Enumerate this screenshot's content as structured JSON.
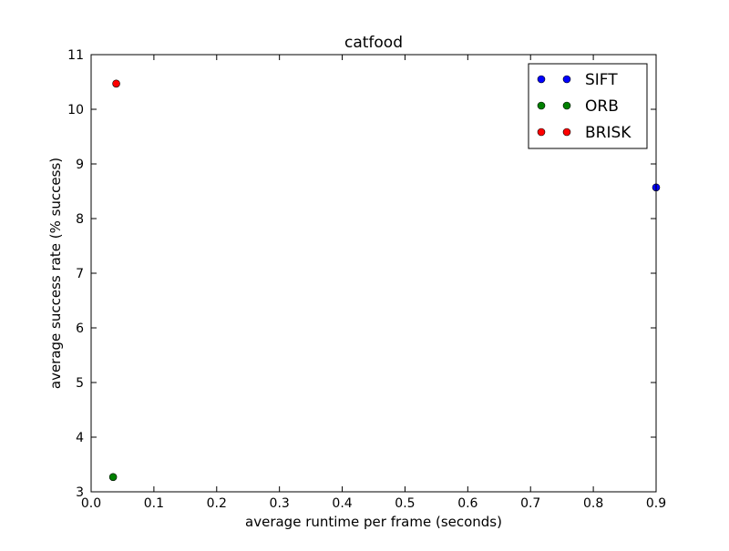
{
  "chart_data": {
    "type": "scatter",
    "title": "catfood",
    "xlabel": "average runtime per frame (seconds)",
    "ylabel": "average success rate (% success)",
    "xlim": [
      0.0,
      0.9
    ],
    "ylim": [
      3,
      11
    ],
    "x_ticks": [
      "0.0",
      "0.1",
      "0.2",
      "0.3",
      "0.4",
      "0.5",
      "0.6",
      "0.7",
      "0.8",
      "0.9"
    ],
    "y_ticks": [
      "3",
      "4",
      "5",
      "6",
      "7",
      "8",
      "9",
      "10",
      "11"
    ],
    "grid": false,
    "legend_position": "top-right",
    "series": [
      {
        "name": "SIFT",
        "color": "#0000ff",
        "x": [
          0.9
        ],
        "y": [
          8.57
        ]
      },
      {
        "name": "ORB",
        "color": "#008000",
        "x": [
          0.035
        ],
        "y": [
          3.27
        ]
      },
      {
        "name": "BRISK",
        "color": "#ff0000",
        "x": [
          0.04
        ],
        "y": [
          10.47
        ]
      }
    ]
  }
}
